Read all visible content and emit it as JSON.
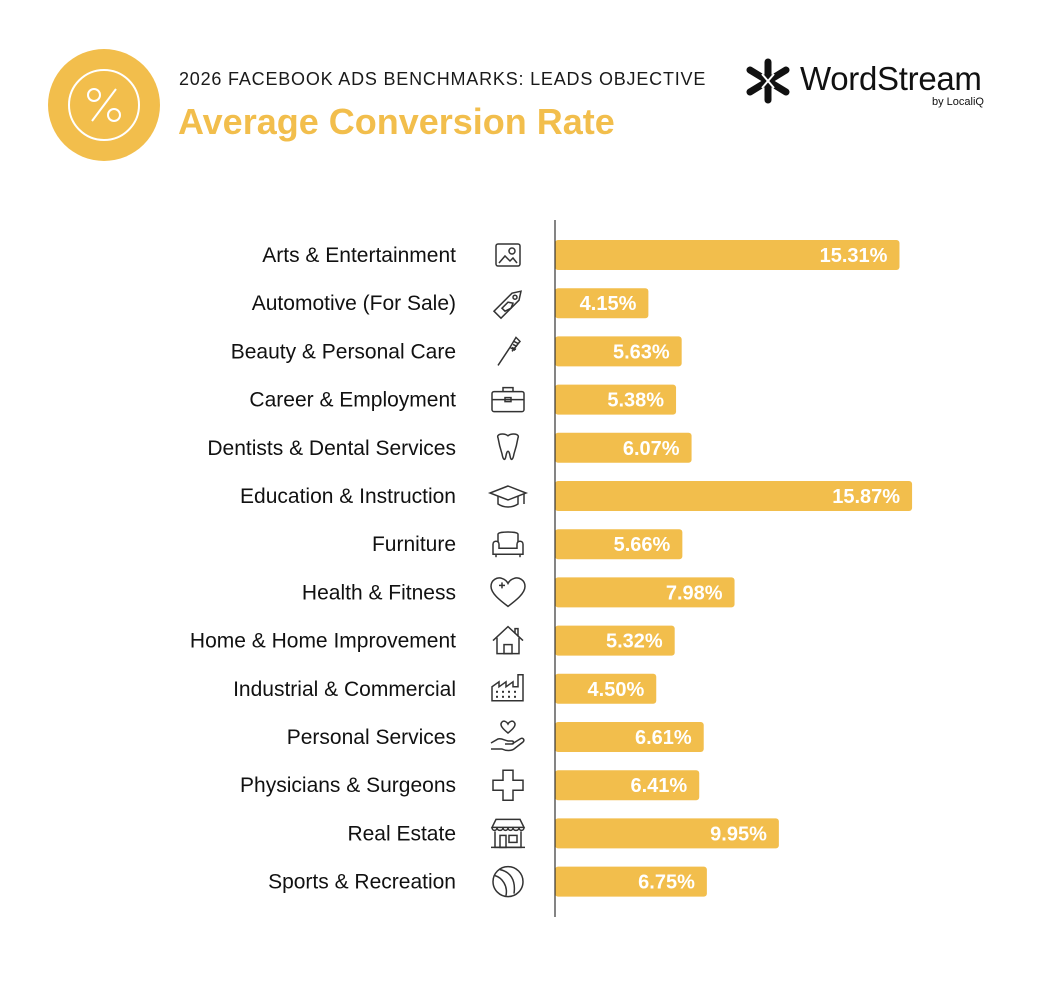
{
  "header": {
    "supertitle": "2026 FACEBOOK ADS BENCHMARKS: LEADS OBJECTIVE",
    "title": "Average Conversion Rate",
    "badge_icon": "percent-icon"
  },
  "logo": {
    "word": "WordStream",
    "sub": "by LocaliQ",
    "icon": "wordstream-logo-icon"
  },
  "colors": {
    "accent": "#f2be4c",
    "bar": "#f2be4c",
    "value_text": "#ffffff",
    "text": "#111111",
    "axis": "#333333"
  },
  "chart_data": {
    "type": "bar",
    "orientation": "horizontal",
    "title": "Average Conversion Rate",
    "value_suffix": "%",
    "xlim": [
      0,
      20
    ],
    "grid": false,
    "categories": [
      "Arts & Entertainment",
      "Automotive (For Sale)",
      "Beauty & Personal Care",
      "Career & Employment",
      "Dentists & Dental Services",
      "Education & Instruction",
      "Furniture",
      "Health & Fitness",
      "Home & Home Improvement",
      "Industrial & Commercial",
      "Personal Services",
      "Physicians & Surgeons",
      "Real Estate",
      "Sports & Recreation"
    ],
    "values": [
      15.31,
      4.15,
      5.63,
      5.38,
      6.07,
      15.87,
      5.66,
      7.98,
      5.32,
      4.5,
      6.61,
      6.41,
      9.95,
      6.75
    ],
    "data_labels": [
      "15.31%",
      "4.15%",
      "5.63%",
      "5.38%",
      "6.07%",
      "15.87%",
      "5.66%",
      "7.98%",
      "5.32%",
      "4.50%",
      "6.61%",
      "6.41%",
      "9.95%",
      "6.75%"
    ],
    "icons": [
      "picture-icon",
      "car-tag-icon",
      "comb-icon",
      "briefcase-icon",
      "tooth-icon",
      "graduation-cap-icon",
      "armchair-icon",
      "heart-plus-icon",
      "house-icon",
      "factory-icon",
      "hand-heart-icon",
      "medical-cross-icon",
      "storefront-icon",
      "ball-icon"
    ]
  }
}
